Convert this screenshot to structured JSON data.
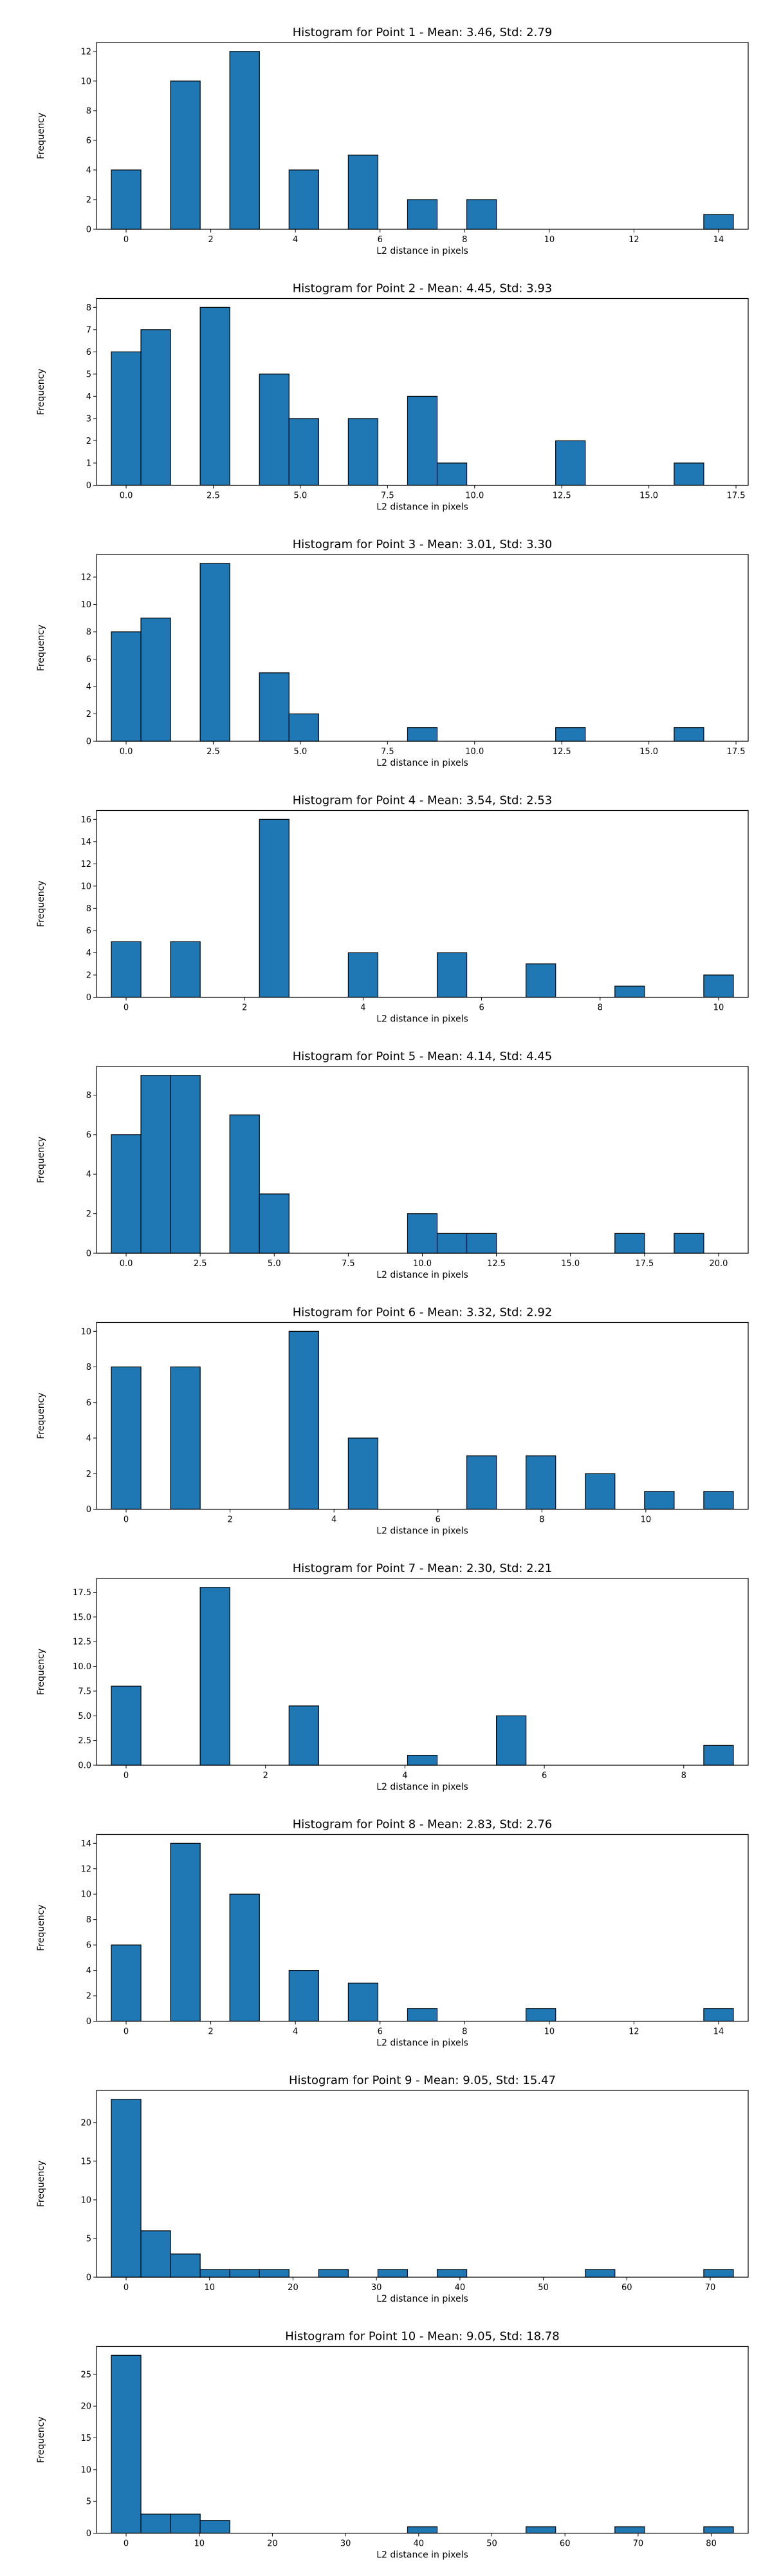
{
  "chart_data": [
    {
      "type": "bar",
      "title": "Histogram for Point 1 - Mean: 3.46, Std: 2.79",
      "xlabel": "L2 distance in pixels",
      "ylabel": "Frequency",
      "bin_width": 0.7,
      "x": [
        0,
        1.4,
        2.8,
        4.2,
        5.6,
        7.0,
        8.4,
        9.8,
        11.2,
        12.6,
        14.0
      ],
      "values": [
        4,
        10,
        12,
        4,
        5,
        2,
        2,
        0,
        0,
        0,
        1
      ],
      "xlim": [
        -0.7,
        14.7
      ],
      "ylim": [
        0,
        12.6
      ],
      "xticks": [
        0,
        2,
        4,
        6,
        8,
        10,
        12,
        14
      ],
      "xtick_labels": [
        "0",
        "2",
        "4",
        "6",
        "8",
        "10",
        "12",
        "14"
      ],
      "yticks": [
        0,
        2,
        4,
        6,
        8,
        10,
        12
      ],
      "ytick_labels": [
        "0",
        "2",
        "4",
        "6",
        "8",
        "10",
        "12"
      ],
      "grid": false,
      "bar_color": "#1f77b4",
      "edge_color": "#000000"
    },
    {
      "type": "bar",
      "title": "Histogram for Point 2 - Mean: 4.45, Std: 3.93",
      "xlabel": "L2 distance in pixels",
      "ylabel": "Frequency",
      "bin_width": 0.85,
      "x": [
        0,
        0.85,
        1.7,
        2.55,
        3.4,
        4.25,
        5.1,
        5.95,
        6.8,
        7.65,
        8.5,
        9.35,
        10.2,
        11.05,
        11.9,
        12.75,
        13.6,
        14.45,
        15.3,
        16.15
      ],
      "values": [
        6,
        7,
        0,
        8,
        0,
        5,
        3,
        0,
        3,
        0,
        4,
        1,
        0,
        0,
        0,
        2,
        0,
        0,
        0,
        1
      ],
      "xlim": [
        -0.85,
        17.85
      ],
      "ylim": [
        0,
        8.4
      ],
      "xticks": [
        0,
        2.5,
        5,
        7.5,
        10,
        12.5,
        15,
        17.5
      ],
      "xtick_labels": [
        "0.0",
        "2.5",
        "5.0",
        "7.5",
        "10.0",
        "12.5",
        "15.0",
        "17.5"
      ],
      "yticks": [
        0,
        1,
        2,
        3,
        4,
        5,
        6,
        7,
        8
      ],
      "ytick_labels": [
        "0",
        "1",
        "2",
        "3",
        "4",
        "5",
        "6",
        "7",
        "8"
      ],
      "grid": false,
      "bar_color": "#1f77b4",
      "edge_color": "#000000"
    },
    {
      "type": "bar",
      "title": "Histogram for Point 3 - Mean: 3.01, Std: 3.30",
      "xlabel": "L2 distance in pixels",
      "ylabel": "Frequency",
      "bin_width": 0.85,
      "x": [
        0,
        0.85,
        1.7,
        2.55,
        3.4,
        4.25,
        5.1,
        5.95,
        6.8,
        7.65,
        8.5,
        9.35,
        10.2,
        11.05,
        11.9,
        12.75,
        13.6,
        14.45,
        15.3,
        16.15
      ],
      "values": [
        8,
        9,
        0,
        13,
        0,
        5,
        2,
        0,
        0,
        0,
        1,
        0,
        0,
        0,
        0,
        1,
        0,
        0,
        0,
        1
      ],
      "xlim": [
        -0.85,
        17.85
      ],
      "ylim": [
        0,
        13.65
      ],
      "xticks": [
        0,
        2.5,
        5,
        7.5,
        10,
        12.5,
        15,
        17.5
      ],
      "xtick_labels": [
        "0.0",
        "2.5",
        "5.0",
        "7.5",
        "10.0",
        "12.5",
        "15.0",
        "17.5"
      ],
      "yticks": [
        0,
        2,
        4,
        6,
        8,
        10,
        12
      ],
      "ytick_labels": [
        "0",
        "2",
        "4",
        "6",
        "8",
        "10",
        "12"
      ],
      "grid": false,
      "bar_color": "#1f77b4",
      "edge_color": "#000000"
    },
    {
      "type": "bar",
      "title": "Histogram for Point 4 - Mean: 3.54, Std: 2.53",
      "xlabel": "L2 distance in pixels",
      "ylabel": "Frequency",
      "bin_width": 0.5,
      "x": [
        0,
        1,
        2.5,
        4,
        5.5,
        7,
        8.5,
        10
      ],
      "values": [
        5,
        5,
        16,
        4,
        4,
        3,
        1,
        2
      ],
      "xlim": [
        -0.5,
        10.5
      ],
      "ylim": [
        0,
        16.8
      ],
      "xticks": [
        0,
        2,
        4,
        6,
        8,
        10
      ],
      "xtick_labels": [
        "0",
        "2",
        "4",
        "6",
        "8",
        "10"
      ],
      "yticks": [
        0,
        2,
        4,
        6,
        8,
        10,
        12,
        14,
        16
      ],
      "ytick_labels": [
        "0",
        "2",
        "4",
        "6",
        "8",
        "10",
        "12",
        "14",
        "16"
      ],
      "grid": false,
      "bar_color": "#1f77b4",
      "edge_color": "#000000"
    },
    {
      "type": "bar",
      "title": "Histogram for Point 5 - Mean: 4.14, Std: 4.45",
      "xlabel": "L2 distance in pixels",
      "ylabel": "Frequency",
      "bin_width": 1.0,
      "x": [
        0,
        1,
        2,
        3,
        4,
        5,
        6,
        7,
        8,
        9,
        10,
        11,
        12,
        13,
        14,
        15,
        16,
        17,
        18,
        19,
        20
      ],
      "values": [
        6,
        9,
        9,
        0,
        7,
        3,
        0,
        0,
        0,
        0,
        2,
        1,
        1,
        0,
        0,
        0,
        0,
        1,
        0,
        1,
        0
      ],
      "xlim": [
        -1,
        21
      ],
      "ylim": [
        0,
        9.45
      ],
      "xticks": [
        0,
        2.5,
        5,
        7.5,
        10,
        12.5,
        15,
        17.5,
        20
      ],
      "xtick_labels": [
        "0.0",
        "2.5",
        "5.0",
        "7.5",
        "10.0",
        "12.5",
        "15.0",
        "17.5",
        "20.0"
      ],
      "yticks": [
        0,
        2,
        4,
        6,
        8
      ],
      "ytick_labels": [
        "0",
        "2",
        "4",
        "6",
        "8"
      ],
      "grid": false,
      "bar_color": "#1f77b4",
      "edge_color": "#000000"
    },
    {
      "type": "bar",
      "title": "Histogram for Point 6 - Mean: 3.32, Std: 2.92",
      "xlabel": "L2 distance in pixels",
      "ylabel": "Frequency",
      "bin_width": 0.57,
      "x": [
        0,
        1.14,
        2.28,
        3.42,
        4.56,
        5.7,
        6.84,
        7.98,
        9.12,
        10.26,
        11.4
      ],
      "values": [
        8,
        8,
        0,
        10,
        4,
        0,
        3,
        3,
        2,
        1,
        1
      ],
      "xlim": [
        -0.57,
        11.97
      ],
      "ylim": [
        0,
        10.5
      ],
      "xticks": [
        0,
        2,
        4,
        6,
        8,
        10
      ],
      "xtick_labels": [
        "0",
        "2",
        "4",
        "6",
        "8",
        "10"
      ],
      "yticks": [
        0,
        2,
        4,
        6,
        8,
        10
      ],
      "ytick_labels": [
        "0",
        "2",
        "4",
        "6",
        "8",
        "10"
      ],
      "grid": false,
      "bar_color": "#1f77b4",
      "edge_color": "#000000"
    },
    {
      "type": "bar",
      "title": "Histogram for Point 7 - Mean: 2.30, Std: 2.21",
      "xlabel": "L2 distance in pixels",
      "ylabel": "Frequency",
      "bin_width": 0.425,
      "x": [
        0,
        0.425,
        0.85,
        1.275,
        1.7,
        2.125,
        2.55,
        2.975,
        3.4,
        3.825,
        4.25,
        4.675,
        5.1,
        5.525,
        5.95,
        6.375,
        6.8,
        7.225,
        7.65,
        8.075,
        8.5
      ],
      "values": [
        8,
        0,
        0,
        18,
        0,
        0,
        6,
        0,
        0,
        0,
        1,
        0,
        0,
        5,
        0,
        0,
        0,
        0,
        0,
        0,
        2
      ],
      "xlim": [
        -0.425,
        8.925
      ],
      "ylim": [
        0,
        18.9
      ],
      "xticks": [
        0,
        2,
        4,
        6,
        8
      ],
      "xtick_labels": [
        "0",
        "2",
        "4",
        "6",
        "8"
      ],
      "yticks": [
        0,
        2.5,
        5,
        7.5,
        10,
        12.5,
        15,
        17.5
      ],
      "ytick_labels": [
        "0.0",
        "2.5",
        "5.0",
        "7.5",
        "10.0",
        "12.5",
        "15.0",
        "17.5"
      ],
      "grid": false,
      "bar_color": "#1f77b4",
      "edge_color": "#000000"
    },
    {
      "type": "bar",
      "title": "Histogram for Point 8 - Mean: 2.83, Std: 2.76",
      "xlabel": "L2 distance in pixels",
      "ylabel": "Frequency",
      "bin_width": 0.7,
      "x": [
        0,
        1.4,
        2.8,
        4.2,
        5.6,
        7.0,
        8.4,
        9.8,
        11.2,
        12.6,
        14.0
      ],
      "values": [
        6,
        14,
        10,
        4,
        3,
        1,
        0,
        1,
        0,
        0,
        1
      ],
      "xlim": [
        -0.7,
        14.7
      ],
      "ylim": [
        0,
        14.7
      ],
      "xticks": [
        0,
        2,
        4,
        6,
        8,
        10,
        12,
        14
      ],
      "xtick_labels": [
        "0",
        "2",
        "4",
        "6",
        "8",
        "10",
        "12",
        "14"
      ],
      "yticks": [
        0,
        2,
        4,
        6,
        8,
        10,
        12,
        14
      ],
      "ytick_labels": [
        "0",
        "2",
        "4",
        "6",
        "8",
        "10",
        "12",
        "14"
      ],
      "grid": false,
      "bar_color": "#1f77b4",
      "edge_color": "#000000"
    },
    {
      "type": "bar",
      "title": "Histogram for Point 9 - Mean: 9.05, Std: 15.47",
      "xlabel": "L2 distance in pixels",
      "ylabel": "Frequency",
      "bin_width": 3.55,
      "x": [
        0,
        3.55,
        7.1,
        10.65,
        14.2,
        17.75,
        21.3,
        24.85,
        28.4,
        31.95,
        35.5,
        39.05,
        42.6,
        46.15,
        49.7,
        53.25,
        56.8,
        60.35,
        63.9,
        67.45,
        71.0
      ],
      "values": [
        23,
        6,
        3,
        1,
        1,
        1,
        0,
        1,
        0,
        1,
        0,
        1,
        0,
        0,
        0,
        0,
        1,
        0,
        0,
        0,
        1
      ],
      "xlim": [
        -3.55,
        74.55
      ],
      "ylim": [
        0,
        24.15
      ],
      "xticks": [
        0,
        10,
        20,
        30,
        40,
        50,
        60,
        70
      ],
      "xtick_labels": [
        "0",
        "10",
        "20",
        "30",
        "40",
        "50",
        "60",
        "70"
      ],
      "yticks": [
        0,
        5,
        10,
        15,
        20
      ],
      "ytick_labels": [
        "0",
        "5",
        "10",
        "15",
        "20"
      ],
      "grid": false,
      "bar_color": "#1f77b4",
      "edge_color": "#000000"
    },
    {
      "type": "bar",
      "title": "Histogram for Point 10 - Mean: 9.05, Std: 18.78",
      "xlabel": "L2 distance in pixels",
      "ylabel": "Frequency",
      "bin_width": 4.05,
      "x": [
        0,
        4.05,
        8.1,
        12.15,
        16.2,
        20.25,
        24.3,
        28.35,
        32.4,
        36.45,
        40.5,
        44.55,
        48.6,
        52.65,
        56.7,
        60.75,
        64.8,
        68.85,
        72.9,
        76.95,
        81.0
      ],
      "values": [
        28,
        3,
        3,
        2,
        0,
        0,
        0,
        0,
        0,
        0,
        1,
        0,
        0,
        0,
        1,
        0,
        0,
        1,
        0,
        0,
        1
      ],
      "xlim": [
        -4.05,
        85.05
      ],
      "ylim": [
        0,
        29.4
      ],
      "xticks": [
        0,
        10,
        20,
        30,
        40,
        50,
        60,
        70,
        80
      ],
      "xtick_labels": [
        "0",
        "10",
        "20",
        "30",
        "40",
        "50",
        "60",
        "70",
        "80"
      ],
      "yticks": [
        0,
        5,
        10,
        15,
        20,
        25
      ],
      "ytick_labels": [
        "0",
        "5",
        "10",
        "15",
        "20",
        "25"
      ],
      "grid": false,
      "bar_color": "#1f77b4",
      "edge_color": "#000000"
    }
  ]
}
